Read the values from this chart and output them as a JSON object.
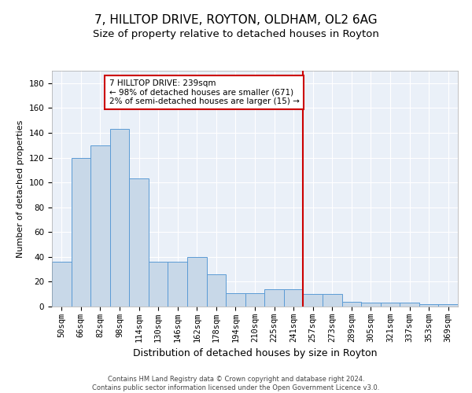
{
  "title": "7, HILLTOP DRIVE, ROYTON, OLDHAM, OL2 6AG",
  "subtitle": "Size of property relative to detached houses in Royton",
  "xlabel": "Distribution of detached houses by size in Royton",
  "ylabel": "Number of detached properties",
  "footer_line1": "Contains HM Land Registry data © Crown copyright and database right 2024.",
  "footer_line2": "Contains public sector information licensed under the Open Government Licence v3.0.",
  "categories": [
    "50sqm",
    "66sqm",
    "82sqm",
    "98sqm",
    "114sqm",
    "130sqm",
    "146sqm",
    "162sqm",
    "178sqm",
    "194sqm",
    "210sqm",
    "225sqm",
    "241sqm",
    "257sqm",
    "273sqm",
    "289sqm",
    "305sqm",
    "321sqm",
    "337sqm",
    "353sqm",
    "369sqm"
  ],
  "values": [
    36,
    120,
    130,
    143,
    103,
    36,
    36,
    40,
    26,
    11,
    11,
    14,
    14,
    10,
    10,
    4,
    3,
    3,
    3,
    2,
    2
  ],
  "bar_color": "#c8d8e8",
  "bar_edge_color": "#5b9bd5",
  "vline_x_index": 13,
  "vline_color": "#cc0000",
  "annotation_text": "7 HILLTOP DRIVE: 239sqm\n← 98% of detached houses are smaller (671)\n2% of semi-detached houses are larger (15) →",
  "annotation_box_color": "#cc0000",
  "annotation_text_color": "#000000",
  "ylim": [
    0,
    190
  ],
  "yticks": [
    0,
    20,
    40,
    60,
    80,
    100,
    120,
    140,
    160,
    180
  ],
  "bg_color": "#eaf0f8",
  "title_fontsize": 11,
  "subtitle_fontsize": 9.5,
  "xlabel_fontsize": 9,
  "ylabel_fontsize": 8,
  "tick_fontsize": 7.5,
  "footer_fontsize": 6
}
